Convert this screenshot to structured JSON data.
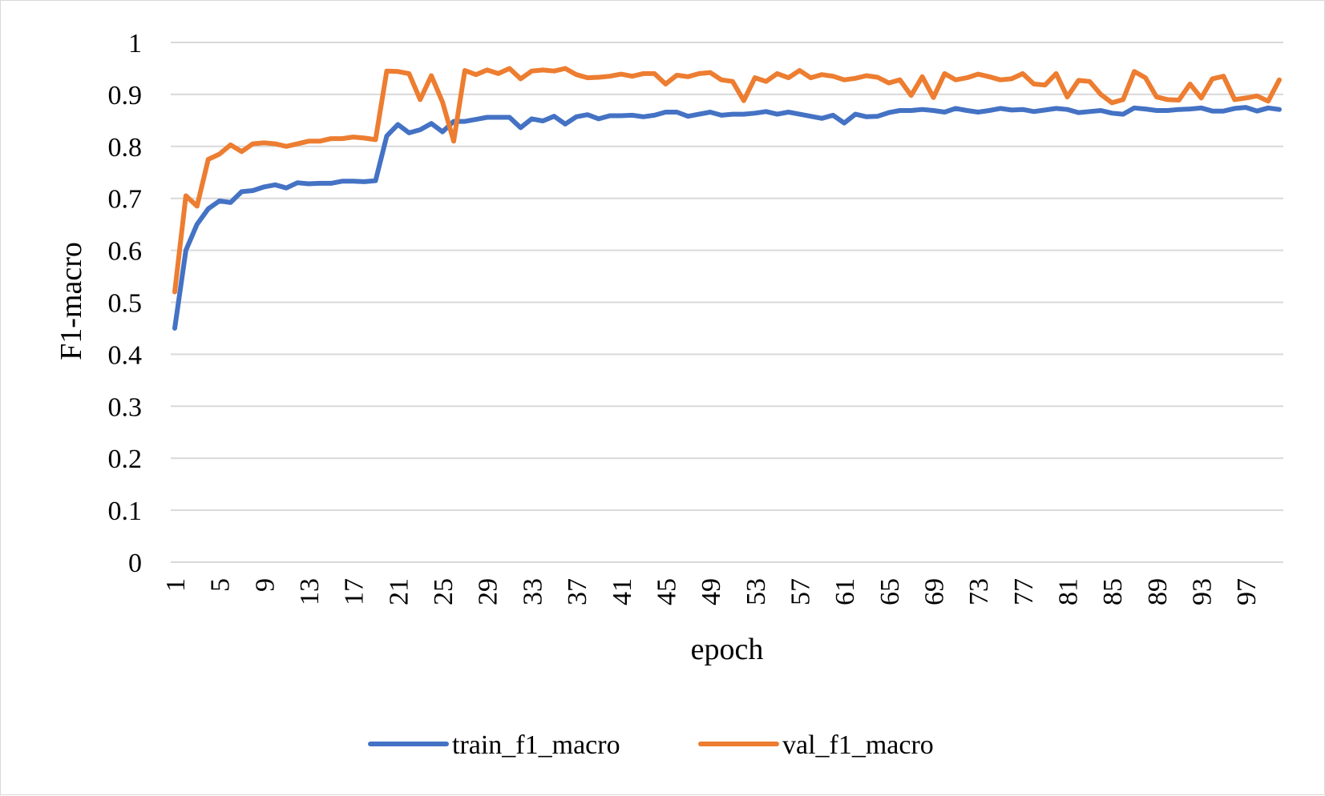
{
  "chart_data": {
    "type": "line",
    "xlabel": "epoch",
    "ylabel": "F1-macro",
    "ylim": [
      0,
      1
    ],
    "y_ticks": [
      "0",
      "0.1",
      "0.2",
      "0.3",
      "0.4",
      "0.5",
      "0.6",
      "0.7",
      "0.8",
      "0.9",
      "1"
    ],
    "x_range": [
      1,
      100
    ],
    "x_tick_labels": [
      "1",
      "5",
      "9",
      "13",
      "17",
      "21",
      "25",
      "29",
      "33",
      "37",
      "41",
      "45",
      "49",
      "53",
      "57",
      "61",
      "65",
      "69",
      "73",
      "77",
      "81",
      "85",
      "89",
      "93",
      "97"
    ],
    "grid": "horizontal",
    "legend_position": "bottom",
    "series": [
      {
        "name": "train_f1_macro",
        "color": "#4472C4",
        "values": [
          0.45,
          0.6,
          0.65,
          0.68,
          0.695,
          0.692,
          0.713,
          0.715,
          0.722,
          0.726,
          0.72,
          0.73,
          0.728,
          0.729,
          0.729,
          0.733,
          0.733,
          0.732,
          0.734,
          0.82,
          0.842,
          0.826,
          0.832,
          0.844,
          0.828,
          0.848,
          0.848,
          0.852,
          0.856,
          0.856,
          0.856,
          0.836,
          0.853,
          0.849,
          0.858,
          0.843,
          0.857,
          0.861,
          0.853,
          0.859,
          0.859,
          0.86,
          0.857,
          0.86,
          0.866,
          0.866,
          0.858,
          0.862,
          0.866,
          0.86,
          0.862,
          0.862,
          0.864,
          0.867,
          0.862,
          0.866,
          0.862,
          0.858,
          0.854,
          0.86,
          0.845,
          0.862,
          0.857,
          0.858,
          0.865,
          0.869,
          0.869,
          0.871,
          0.869,
          0.866,
          0.873,
          0.869,
          0.866,
          0.869,
          0.873,
          0.87,
          0.871,
          0.867,
          0.87,
          0.873,
          0.871,
          0.865,
          0.867,
          0.869,
          0.864,
          0.862,
          0.874,
          0.872,
          0.869,
          0.869,
          0.871,
          0.872,
          0.874,
          0.868,
          0.868,
          0.873,
          0.875,
          0.868,
          0.874,
          0.871
        ]
      },
      {
        "name": "val_f1_macro",
        "color": "#ED7D31",
        "values": [
          0.52,
          0.705,
          0.685,
          0.775,
          0.785,
          0.803,
          0.79,
          0.805,
          0.807,
          0.805,
          0.8,
          0.805,
          0.81,
          0.81,
          0.815,
          0.815,
          0.818,
          0.816,
          0.813,
          0.945,
          0.944,
          0.94,
          0.89,
          0.936,
          0.885,
          0.81,
          0.946,
          0.938,
          0.947,
          0.94,
          0.95,
          0.93,
          0.945,
          0.947,
          0.945,
          0.95,
          0.938,
          0.932,
          0.933,
          0.935,
          0.939,
          0.935,
          0.94,
          0.94,
          0.92,
          0.937,
          0.934,
          0.94,
          0.942,
          0.928,
          0.925,
          0.888,
          0.932,
          0.925,
          0.94,
          0.932,
          0.946,
          0.932,
          0.938,
          0.935,
          0.928,
          0.931,
          0.936,
          0.933,
          0.922,
          0.928,
          0.898,
          0.934,
          0.894,
          0.94,
          0.928,
          0.932,
          0.939,
          0.934,
          0.928,
          0.93,
          0.94,
          0.92,
          0.918,
          0.94,
          0.895,
          0.927,
          0.925,
          0.9,
          0.884,
          0.89,
          0.944,
          0.932,
          0.895,
          0.89,
          0.889,
          0.92,
          0.893,
          0.93,
          0.935,
          0.89,
          0.893,
          0.897,
          0.887,
          0.928
        ]
      }
    ]
  }
}
